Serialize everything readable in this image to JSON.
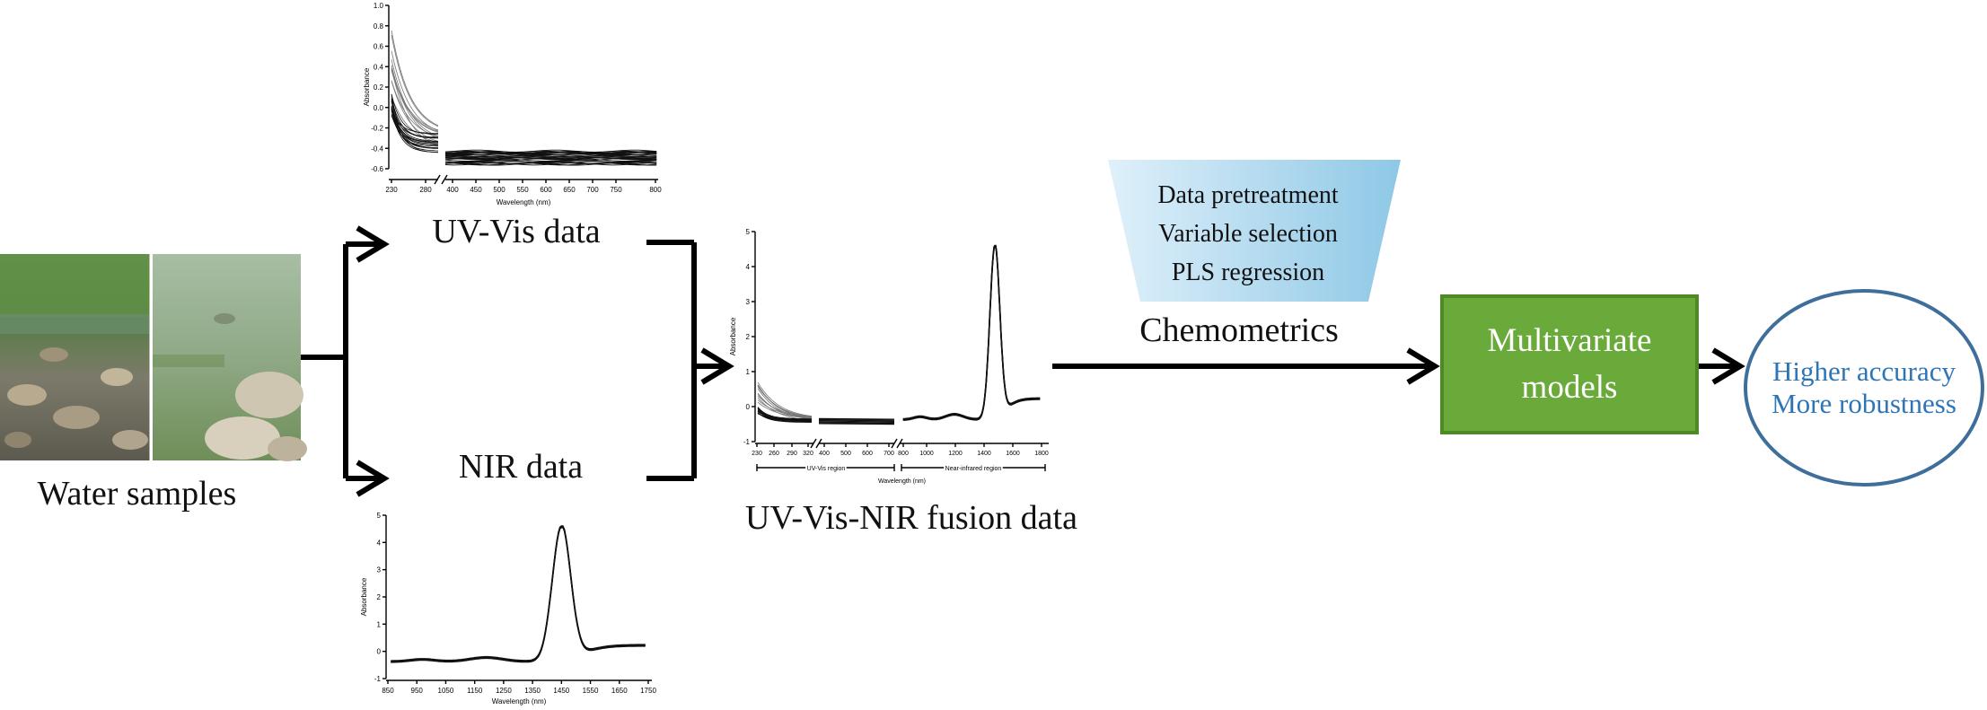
{
  "labels": {
    "water_samples": "Water samples",
    "uv_vis_data": "UV-Vis data",
    "nir_data": "NIR data",
    "fusion_data": "UV-Vis-NIR fusion data",
    "chemometrics": "Chemometrics"
  },
  "pretreatment_steps": [
    "Data pretreatment",
    "Variable selection",
    "PLS regression"
  ],
  "model": {
    "line1": "Multivariate",
    "line2": "models"
  },
  "outcome": {
    "line1": "Higher accuracy",
    "line2": "More robustness"
  },
  "colors": {
    "model_fill": "#6aaa3a",
    "model_border": "#4d8a25",
    "trapezoid": "#9fd0ea",
    "circle_stroke": "#3e6f9a",
    "outcome_text": "#2e75b6"
  },
  "chart_data": [
    {
      "name": "uv_vis",
      "type": "line",
      "ylabel": "Absorbance",
      "xlabel": "Wavelength (nm)",
      "x_ticks": [
        "230",
        "280",
        "400",
        "450",
        "500",
        "550",
        "600",
        "650",
        "700",
        "750",
        "800"
      ],
      "y_ticks": [
        "1.0",
        "0.8",
        "0.6",
        "0.4",
        "0.2",
        "0.0",
        "-0.2",
        "-0.4",
        "-0.6"
      ],
      "ylim": [
        -0.6,
        1.0
      ]
    },
    {
      "name": "nir",
      "type": "line",
      "ylabel": "Absorbance",
      "xlabel": "Wavelength (nm)",
      "x_ticks": [
        "850",
        "950",
        "1050",
        "1150",
        "1250",
        "1350",
        "1450",
        "1550",
        "1650",
        "1750"
      ],
      "y_ticks": [
        "5",
        "4",
        "3",
        "2",
        "1",
        "0",
        "-1"
      ],
      "ylim": [
        -1,
        5
      ],
      "peak_x": 1450,
      "peak_y": 4.6
    },
    {
      "name": "fusion",
      "type": "line",
      "ylabel": "Absorbance",
      "xlabel": "Wavelength (nm)",
      "x_ticks": [
        "230",
        "260",
        "290",
        "320",
        "400",
        "500",
        "600",
        "700",
        "800",
        "1000",
        "1200",
        "1400",
        "1600",
        "1800"
      ],
      "y_ticks": [
        "5",
        "4",
        "3",
        "2",
        "1",
        "0",
        "-1"
      ],
      "ylim": [
        -1,
        5
      ],
      "region_labels": [
        "UV-Vis region",
        "Near-infrared region"
      ]
    }
  ]
}
